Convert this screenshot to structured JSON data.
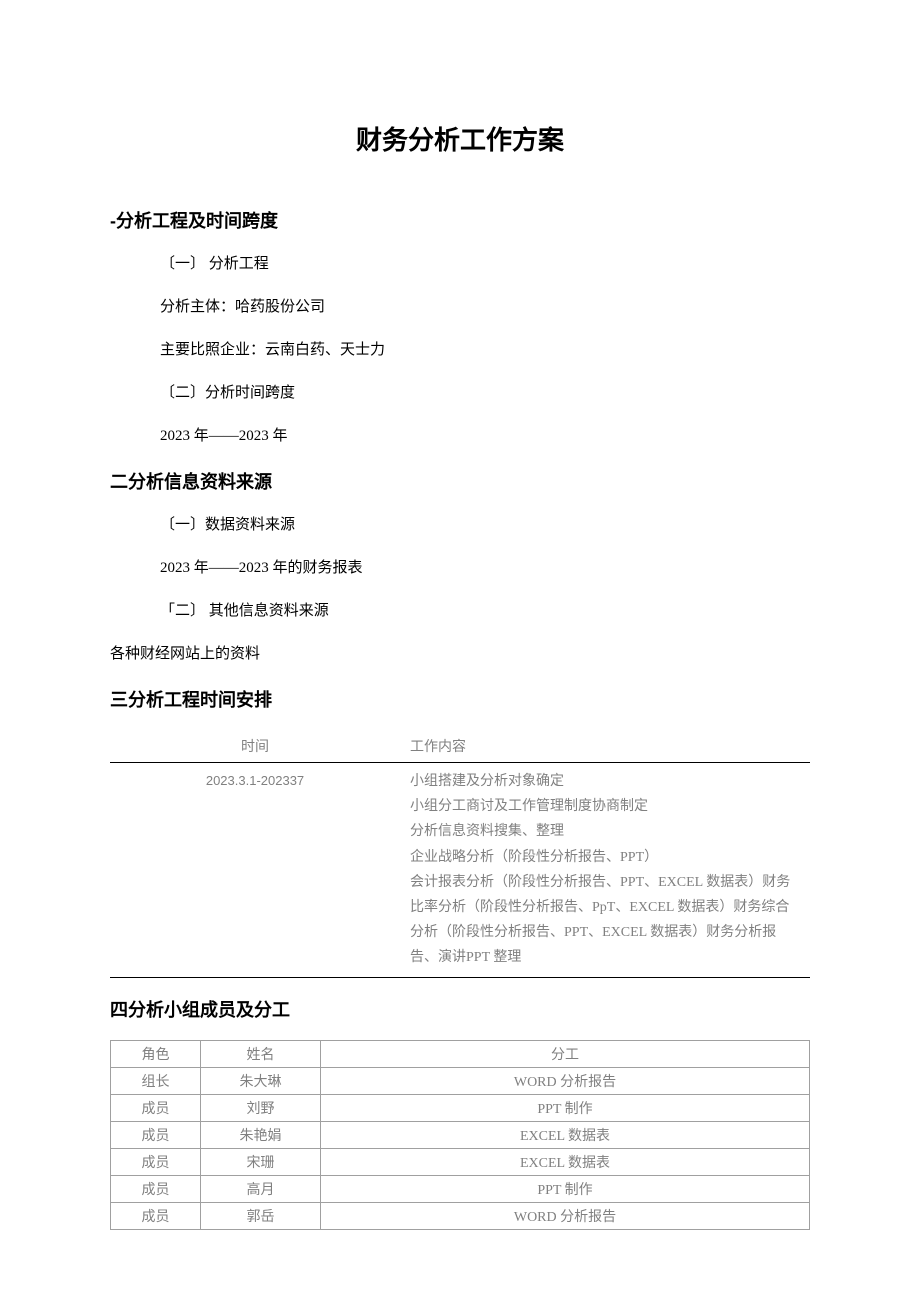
{
  "doc_title": "财务分析工作方案",
  "section1": {
    "heading": "-分析工程及时间跨度",
    "sub1": "〔一〕  分析工程",
    "line1": "分析主体：哈药股份公司",
    "line2": "主要比照企业：云南白药、天士力",
    "sub2": "〔二〕分析时间跨度",
    "line3": "2023 年——2023 年"
  },
  "section2": {
    "heading": "二分析信息资料来源",
    "sub1": "〔一〕数据资料来源",
    "line1": "2023 年——2023 年的财务报表",
    "sub2": "「二〕  其他信息资料来源",
    "line2": "各种财经网站上的资料"
  },
  "section3": {
    "heading": "三分析工程时间安排",
    "table": {
      "type": "table",
      "columns": [
        "时间",
        "工作内容"
      ],
      "col_widths": [
        "290px",
        "auto"
      ],
      "header_border_bottom": "1.5px solid #000000",
      "body_border_bottom": "1.5px solid #000000",
      "text_color": "#808080",
      "font_size": 14,
      "rows": [
        {
          "time": "2023.3.1-202337",
          "content": "小组搭建及分析对象确定\n小组分工商讨及工作管理制度协商制定\n分析信息资料搜集、整理\n企业战略分析（阶段性分析报告、PPT）\n会计报表分析（阶段性分析报告、PPT、EXCEL 数据表）财务比率分析（阶段性分析报告、PpT、EXCEL 数据表）财务综合分析（阶段性分析报告、PPT、EXCEL 数据表）财务分析报告、演讲PPT 整理"
        }
      ]
    }
  },
  "section4": {
    "heading": "四分析小组成员及分工",
    "table": {
      "type": "table",
      "columns": [
        "角色",
        "姓名",
        "分工"
      ],
      "col_widths": [
        "90px",
        "120px",
        "auto"
      ],
      "border_color": "#a0a0a0",
      "text_color": "#808080",
      "font_size": 14,
      "rows": [
        {
          "role": "组长",
          "name": "朱大琳",
          "task": "WORD 分析报告"
        },
        {
          "role": "成员",
          "name": "刘野",
          "task": "PPT 制作"
        },
        {
          "role": "成员",
          "name": "朱艳娟",
          "task": "EXCEL 数据表"
        },
        {
          "role": "成员",
          "name": "宋珊",
          "task": "EXCEL 数据表"
        },
        {
          "role": "成员",
          "name": "高月",
          "task": "PPT 制作"
        },
        {
          "role": "成员",
          "name": "郭岳",
          "task": "WORD 分析报告"
        }
      ]
    }
  },
  "styles": {
    "background_color": "#ffffff",
    "title_fontsize": 26,
    "heading_fontsize": 18,
    "body_fontsize": 15,
    "table_fontsize": 14,
    "gray_text_color": "#808080",
    "black_text_color": "#000000",
    "table_border_color": "#a0a0a0"
  }
}
